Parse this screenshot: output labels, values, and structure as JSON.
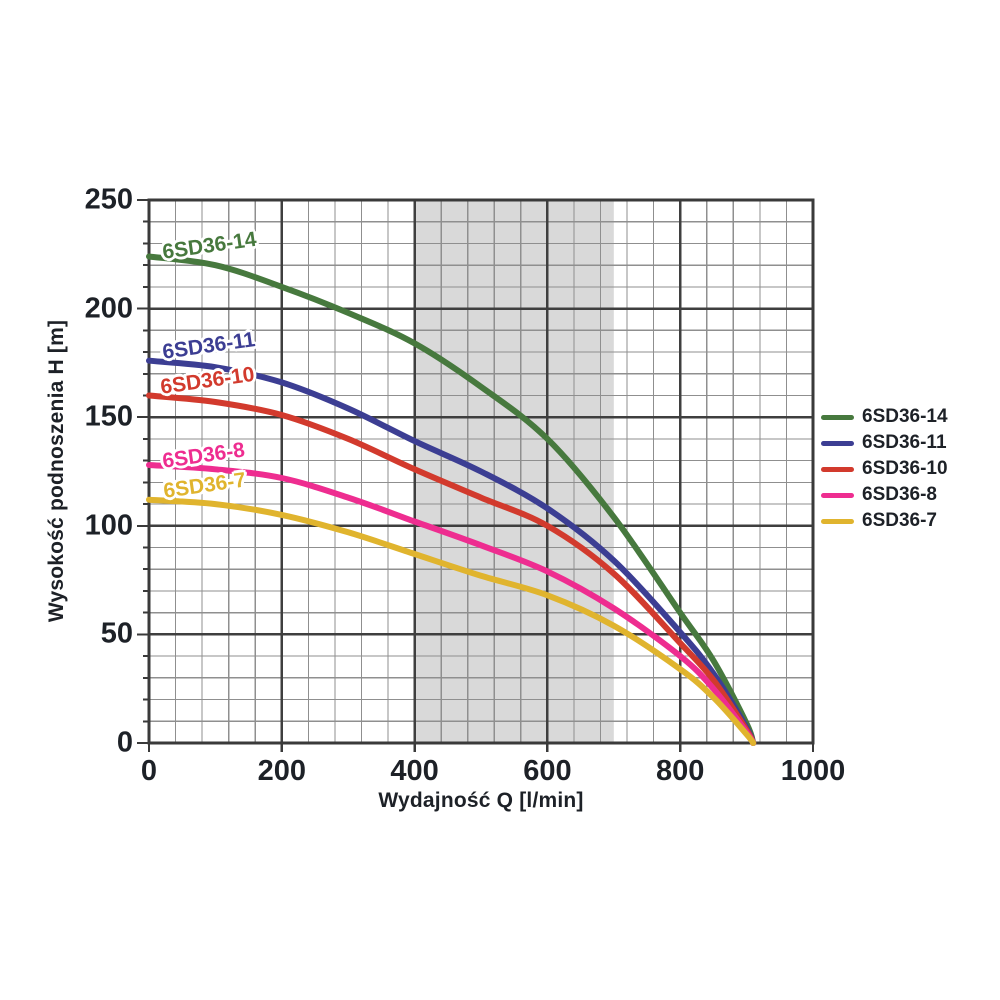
{
  "page": {
    "background": "#ffffff"
  },
  "chart_data": {
    "type": "line",
    "title": "",
    "xlabel": "Wydajność Q [l/min]",
    "ylabel": "Wysokość podnoszenia H [m]",
    "xlim": [
      0,
      1000
    ],
    "ylim": [
      0,
      250
    ],
    "x_major_ticks": [
      0,
      200,
      400,
      600,
      800,
      1000
    ],
    "y_major_ticks": [
      0,
      50,
      100,
      150,
      200,
      250
    ],
    "x_minor_step": 40,
    "y_minor_step": 10,
    "grid": "on",
    "legend_position": "right",
    "axis_color": "#3a3a3a",
    "major_grid_color": "#3f3f3f",
    "minor_grid_color": "#8f8f8f",
    "text_color": "#1d2127",
    "band": {
      "name": "highlighted-flow-range",
      "x_start": 400,
      "x_end": 700,
      "color": "#d9d9d9"
    },
    "series": [
      {
        "name": "6SD36-14",
        "color": "#47793E",
        "label": {
          "text": "6SD36-14",
          "x": 18,
          "y": 231,
          "rotation_deg": -8
        },
        "points": [
          [
            0,
            224
          ],
          [
            100,
            220
          ],
          [
            200,
            210
          ],
          [
            300,
            198
          ],
          [
            400,
            184
          ],
          [
            500,
            164
          ],
          [
            600,
            140
          ],
          [
            700,
            104
          ],
          [
            800,
            60
          ],
          [
            850,
            38
          ],
          [
            900,
            9
          ],
          [
            910,
            0
          ]
        ]
      },
      {
        "name": "6SD36-11",
        "color": "#3C3E93",
        "label": {
          "text": "6SD36-11",
          "x": 18,
          "y": 185,
          "rotation_deg": -8
        },
        "points": [
          [
            0,
            176
          ],
          [
            100,
            173
          ],
          [
            200,
            166
          ],
          [
            300,
            154
          ],
          [
            400,
            139
          ],
          [
            500,
            125
          ],
          [
            600,
            108
          ],
          [
            700,
            84
          ],
          [
            800,
            51
          ],
          [
            850,
            32
          ],
          [
            900,
            7
          ],
          [
            910,
            0
          ]
        ]
      },
      {
        "name": "6SD36-10",
        "color": "#D23A2D",
        "label": {
          "text": "6SD36-10",
          "x": 15,
          "y": 169,
          "rotation_deg": -8
        },
        "points": [
          [
            0,
            160
          ],
          [
            100,
            157
          ],
          [
            200,
            151
          ],
          [
            300,
            140
          ],
          [
            400,
            126
          ],
          [
            500,
            113
          ],
          [
            600,
            100
          ],
          [
            700,
            78
          ],
          [
            800,
            46
          ],
          [
            850,
            29
          ],
          [
            900,
            6
          ],
          [
            910,
            0
          ]
        ]
      },
      {
        "name": "6SD36-8",
        "color": "#EE2D90",
        "label": {
          "text": "6SD36-8",
          "x": 18,
          "y": 135,
          "rotation_deg": -8
        },
        "points": [
          [
            0,
            128
          ],
          [
            100,
            126
          ],
          [
            200,
            122
          ],
          [
            300,
            113
          ],
          [
            400,
            102
          ],
          [
            500,
            91
          ],
          [
            600,
            79
          ],
          [
            700,
            62
          ],
          [
            800,
            40
          ],
          [
            850,
            25
          ],
          [
            900,
            5
          ],
          [
            910,
            0
          ]
        ]
      },
      {
        "name": "6SD36-7",
        "color": "#E0B42E",
        "label": {
          "text": "6SD36-7",
          "x": 20,
          "y": 121,
          "rotation_deg": -8
        },
        "points": [
          [
            0,
            112
          ],
          [
            100,
            110
          ],
          [
            200,
            105
          ],
          [
            300,
            97
          ],
          [
            400,
            87
          ],
          [
            500,
            77
          ],
          [
            600,
            68
          ],
          [
            700,
            54
          ],
          [
            800,
            34
          ],
          [
            850,
            21
          ],
          [
            900,
            4
          ],
          [
            910,
            0
          ]
        ]
      }
    ]
  }
}
